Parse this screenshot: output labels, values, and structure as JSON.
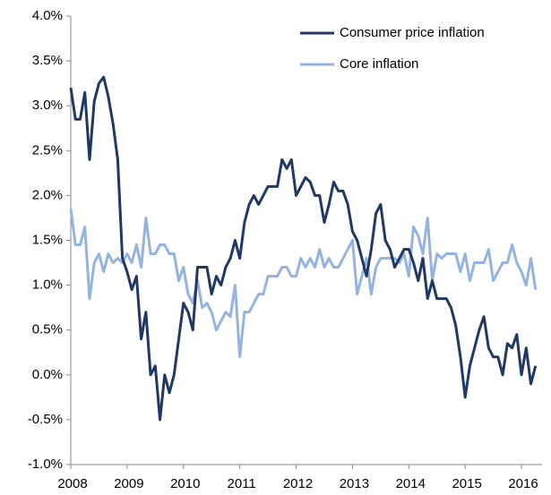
{
  "chart_data": {
    "type": "line",
    "categories": [
      "2008",
      null,
      null,
      null,
      null,
      null,
      null,
      null,
      null,
      null,
      null,
      null,
      "2009",
      null,
      null,
      null,
      null,
      null,
      null,
      null,
      null,
      null,
      null,
      null,
      "2010",
      null,
      null,
      null,
      null,
      null,
      null,
      null,
      null,
      null,
      null,
      null,
      "2011",
      null,
      null,
      null,
      null,
      null,
      null,
      null,
      null,
      null,
      null,
      null,
      "2012",
      null,
      null,
      null,
      null,
      null,
      null,
      null,
      null,
      null,
      null,
      null,
      "2013",
      null,
      null,
      null,
      null,
      null,
      null,
      null,
      null,
      null,
      null,
      null,
      "2014",
      null,
      null,
      null,
      null,
      null,
      null,
      null,
      null,
      null,
      null,
      null,
      "2015",
      null,
      null,
      null,
      null,
      null,
      null,
      null,
      null,
      null,
      null,
      null,
      "2016",
      null,
      null,
      null
    ],
    "series": [
      {
        "name": "Consumer price inflation",
        "color": "#1f3864",
        "values": [
          3.2,
          2.85,
          2.85,
          3.15,
          2.4,
          3.05,
          3.25,
          3.32,
          3.1,
          2.8,
          2.4,
          1.3,
          1.15,
          0.95,
          1.1,
          0.4,
          0.7,
          0.0,
          0.1,
          -0.5,
          0.0,
          -0.2,
          0.0,
          0.4,
          0.8,
          0.7,
          0.5,
          1.2,
          1.2,
          1.2,
          0.9,
          1.1,
          1.0,
          1.2,
          1.3,
          1.5,
          1.3,
          1.7,
          1.9,
          2.0,
          1.9,
          2.0,
          2.1,
          2.1,
          2.1,
          2.4,
          2.3,
          2.4,
          2.0,
          2.1,
          2.2,
          2.15,
          2.0,
          2.0,
          1.7,
          1.9,
          2.15,
          2.05,
          2.05,
          1.9,
          1.6,
          1.5,
          1.3,
          1.1,
          1.4,
          1.8,
          1.9,
          1.5,
          1.4,
          1.2,
          1.3,
          1.4,
          1.4,
          1.25,
          1.05,
          1.3,
          0.85,
          1.05,
          0.85,
          0.85,
          0.85,
          0.75,
          0.55,
          0.2,
          -0.25,
          0.1,
          0.3,
          0.5,
          0.65,
          0.3,
          0.2,
          0.2,
          0.0,
          0.35,
          0.3,
          0.45,
          0.0,
          0.3,
          -0.1,
          0.1
        ]
      },
      {
        "name": "Core inflation",
        "color": "#95b3e0",
        "values": [
          1.85,
          1.45,
          1.45,
          1.65,
          0.85,
          1.25,
          1.35,
          1.15,
          1.35,
          1.25,
          1.3,
          1.25,
          1.35,
          1.25,
          1.45,
          1.2,
          1.75,
          1.35,
          1.35,
          1.45,
          1.45,
          1.35,
          1.35,
          1.05,
          1.2,
          0.9,
          0.8,
          1.05,
          0.75,
          0.8,
          0.7,
          0.5,
          0.6,
          0.7,
          0.65,
          1.0,
          0.2,
          0.7,
          0.7,
          0.8,
          0.9,
          0.9,
          1.1,
          1.1,
          1.1,
          1.2,
          1.2,
          1.1,
          1.1,
          1.3,
          1.2,
          1.3,
          1.2,
          1.4,
          1.2,
          1.3,
          1.2,
          1.2,
          1.3,
          1.4,
          1.5,
          0.9,
          1.1,
          1.3,
          0.9,
          1.2,
          1.3,
          1.3,
          1.3,
          1.3,
          1.25,
          1.35,
          1.1,
          1.65,
          1.55,
          1.35,
          1.75,
          1.05,
          1.35,
          1.3,
          1.35,
          1.35,
          1.35,
          1.15,
          1.35,
          1.05,
          1.25,
          1.25,
          1.25,
          1.4,
          1.05,
          1.15,
          1.25,
          1.25,
          1.45,
          1.25,
          1.15,
          1.0,
          1.3,
          0.95
        ]
      }
    ],
    "ylim": [
      -1.0,
      4.0
    ],
    "yticks": [
      {
        "value": -1.0,
        "label": "-1.0%"
      },
      {
        "value": -0.5,
        "label": "-0.5%"
      },
      {
        "value": 0.0,
        "label": "0.0%"
      },
      {
        "value": 0.5,
        "label": "0.5%"
      },
      {
        "value": 1.0,
        "label": "1.0%"
      },
      {
        "value": 1.5,
        "label": "1.5%"
      },
      {
        "value": 2.0,
        "label": "2.0%"
      },
      {
        "value": 2.5,
        "label": "2.5%"
      },
      {
        "value": 3.0,
        "label": "3.0%"
      },
      {
        "value": 3.5,
        "label": "3.5%"
      },
      {
        "value": 4.0,
        "label": "4.0%"
      }
    ],
    "legend": "top-right"
  }
}
